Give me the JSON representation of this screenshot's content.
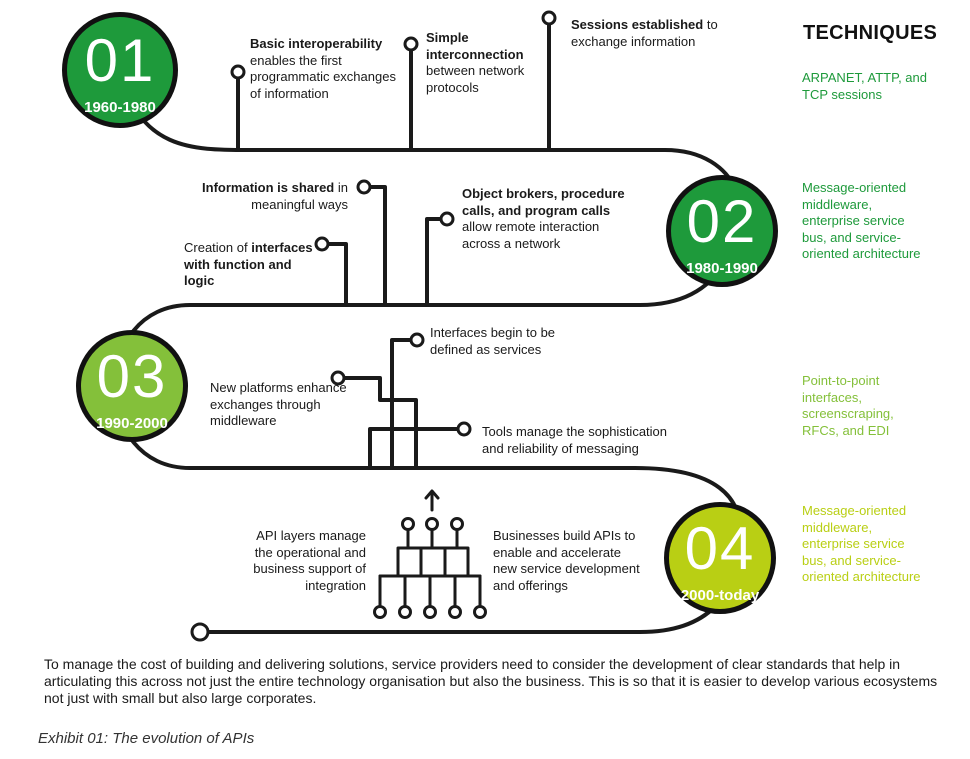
{
  "techniques_heading": "TECHNIQUES",
  "eras": [
    {
      "number": "01",
      "years": "1960-1980",
      "color": "#1e9a3b",
      "techniques": "ARPANET, ATTP, and TCP sessions",
      "tech_color": "#1e9a3b"
    },
    {
      "number": "02",
      "years": "1980-1990",
      "color": "#1e9a3b",
      "techniques": "Message-oriented middleware, enterprise service bus, and service-oriented architecture",
      "tech_color": "#1e9a3b"
    },
    {
      "number": "03",
      "years": "1990-2000",
      "color": "#84c03a",
      "techniques": "Point-to-point interfaces, screenscraping, RFCs, and EDI",
      "tech_color": "#84c03a"
    },
    {
      "number": "04",
      "years": "2000-today",
      "color": "#b9cf14",
      "techniques": "Message-oriented middleware, enterprise service bus, and service-oriented architecture",
      "tech_color": "#b9cf14"
    }
  ],
  "milestones": {
    "m1_bold": "Basic interoperability",
    "m1_text": "enables the first programmatic exchanges of information",
    "m2_bold": "Simple interconnection",
    "m2_text": "between network protocols",
    "m3_bold": "Sessions established",
    "m3_text": "to exchange information",
    "m4_bold": "Information is shared",
    "m4_text": "in meaningful ways",
    "m5_pre": "Creation of",
    "m5_bold": "interfaces with function and logic",
    "m6_bold": "Object brokers, procedure calls, and program calls",
    "m6_text": "allow remote interaction across a network",
    "m7_text": "Interfaces begin to be defined as services",
    "m8_text": "New platforms enhance exchanges through middleware",
    "m9_text": "Tools manage the sophistication and reliability of messaging",
    "m10_text": "API layers manage the operational and business support of integration",
    "m11_text": "Businesses build APIs to enable and accelerate new service development and offerings"
  },
  "caption": "To manage the cost of building and delivering solutions, service providers need to consider the development of clear standards that help in articulating this across not just the entire technology organisation but also the business. This is so that it is easier to develop various ecosystems not just with small but also large corporates.",
  "exhibit": "Exhibit 01: The evolution of APIs",
  "colors": {
    "line": "#1a1a1a",
    "era_dark": "#1e9a3b",
    "era_mid": "#84c03a",
    "era_light": "#b9cf14"
  }
}
